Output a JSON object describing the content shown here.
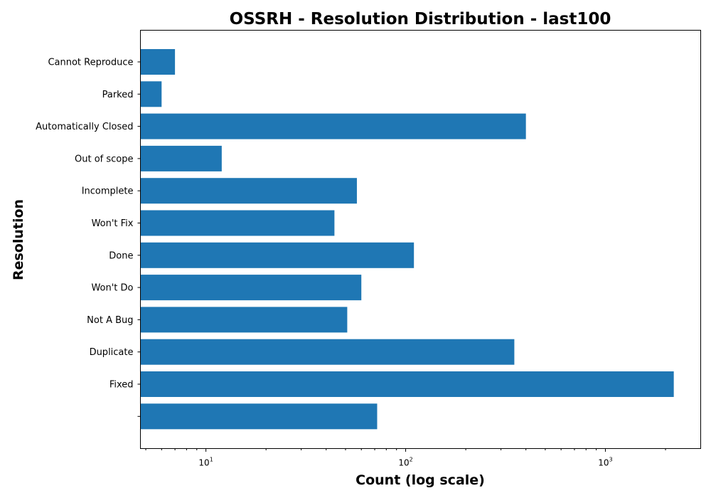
{
  "chart_data": {
    "type": "bar",
    "orientation": "horizontal",
    "title": "OSSRH - Resolution Distribution - last100",
    "xlabel": "Count (log scale)",
    "ylabel": "Resolution",
    "xscale": "log",
    "xlim": [
      4.7,
      3000
    ],
    "x_ticks": [
      {
        "base": "10",
        "exp": "1",
        "value": 10
      },
      {
        "base": "10",
        "exp": "2",
        "value": 100
      },
      {
        "base": "10",
        "exp": "3",
        "value": 1000
      }
    ],
    "categories": [
      "Cannot Reproduce",
      "Parked",
      "Automatically Closed",
      "Out of scope",
      "Incomplete",
      "Won't Fix",
      "Done",
      "Won't Do",
      "Not A Bug",
      "Duplicate",
      "Fixed",
      ""
    ],
    "values": [
      7,
      6,
      400,
      12,
      57,
      44,
      110,
      60,
      51,
      350,
      2200,
      72
    ],
    "bar_color": "#1f77b4",
    "grid": false,
    "legend": "none"
  }
}
